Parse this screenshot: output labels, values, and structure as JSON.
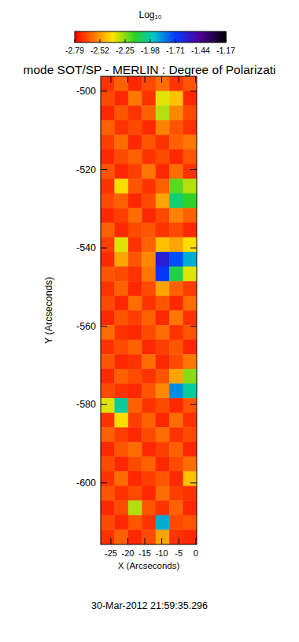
{
  "chart_data": {
    "type": "heatmap",
    "title": "mode SOT/SP - MERLIN : Degree of Polarizati",
    "x_label": "X (Arcseconds)",
    "y_label": "Y (Arcseconds)",
    "date": "30-Mar-2012 21:59:35.296",
    "xlim": [
      -28,
      0.3
    ],
    "ylim": [
      -615.7,
      -496.2
    ],
    "xticks": [
      -25,
      -20,
      -15,
      -10,
      -5,
      0
    ],
    "yticks": [
      -500,
      -520,
      -540,
      -560,
      -580,
      -600
    ],
    "colorbar": {
      "title": "Log₁₀",
      "range": [
        -2.79,
        -1.17
      ],
      "ticks": [
        -2.79,
        -2.52,
        -2.25,
        -1.98,
        -1.71,
        -1.44,
        -1.17
      ]
    },
    "cells": [
      [
        -2.7,
        -2.62,
        -2.72,
        -2.66,
        -2.6,
        -2.7,
        -2.64
      ],
      [
        -2.66,
        -2.72,
        -2.58,
        -2.7,
        -2.35,
        -2.45,
        -2.72
      ],
      [
        -2.72,
        -2.64,
        -2.7,
        -2.62,
        -2.3,
        -2.55,
        -2.66
      ],
      [
        -2.62,
        -2.7,
        -2.66,
        -2.72,
        -2.56,
        -2.64,
        -2.7
      ],
      [
        -2.68,
        -2.6,
        -2.72,
        -2.64,
        -2.7,
        -2.62,
        -2.58
      ],
      [
        -2.72,
        -2.66,
        -2.62,
        -2.7,
        -2.66,
        -2.72,
        -2.64
      ],
      [
        -2.64,
        -2.72,
        -2.68,
        -2.58,
        -2.72,
        -2.6,
        -2.7
      ],
      [
        -2.7,
        -2.4,
        -2.64,
        -2.7,
        -2.62,
        -2.2,
        -2.3
      ],
      [
        -2.66,
        -2.62,
        -2.72,
        -2.66,
        -2.5,
        -2.05,
        -2.15
      ],
      [
        -2.72,
        -2.68,
        -2.6,
        -2.72,
        -2.66,
        -2.56,
        -2.62
      ],
      [
        -2.62,
        -2.72,
        -2.66,
        -2.64,
        -2.7,
        -2.66,
        -2.72
      ],
      [
        -2.68,
        -2.35,
        -2.7,
        -2.62,
        -2.45,
        -2.5,
        -2.4
      ],
      [
        -2.72,
        -2.5,
        -2.64,
        -2.55,
        -1.6,
        -1.75,
        -1.9
      ],
      [
        -2.64,
        -2.66,
        -2.7,
        -2.58,
        -1.7,
        -2.1,
        -2.35
      ],
      [
        -2.7,
        -2.62,
        -2.72,
        -2.66,
        -2.5,
        -2.62,
        -2.68
      ],
      [
        -2.66,
        -2.72,
        -2.6,
        -2.7,
        -2.64,
        -2.72,
        -2.6
      ],
      [
        -2.72,
        -2.64,
        -2.68,
        -2.62,
        -2.72,
        -2.58,
        -2.7
      ],
      [
        -2.6,
        -2.7,
        -2.72,
        -2.66,
        -2.6,
        -2.7,
        -2.64
      ],
      [
        -2.7,
        -2.66,
        -2.62,
        -2.72,
        -2.68,
        -2.64,
        -2.72
      ],
      [
        -2.64,
        -2.72,
        -2.7,
        -2.6,
        -2.72,
        -2.66,
        -2.58
      ],
      [
        -2.72,
        -2.62,
        -2.66,
        -2.7,
        -2.64,
        -2.5,
        -2.25
      ],
      [
        -2.66,
        -2.7,
        -2.72,
        -2.64,
        -2.55,
        -1.85,
        -2.0
      ],
      [
        -2.35,
        -2.0,
        -2.62,
        -2.7,
        -2.66,
        -2.72,
        -2.64
      ],
      [
        -2.7,
        -2.4,
        -2.68,
        -2.62,
        -2.72,
        -2.6,
        -2.7
      ],
      [
        -2.62,
        -2.68,
        -2.72,
        -2.66,
        -2.6,
        -2.7,
        -2.66
      ],
      [
        -2.72,
        -2.64,
        -2.6,
        -2.72,
        -2.68,
        -2.62,
        -2.72
      ],
      [
        -2.66,
        -2.72,
        -2.66,
        -2.62,
        -2.72,
        -2.66,
        -2.6
      ],
      [
        -2.7,
        -2.6,
        -2.72,
        -2.68,
        -2.64,
        -2.72,
        -2.45
      ],
      [
        -2.64,
        -2.7,
        -2.66,
        -2.72,
        -2.6,
        -2.68,
        -2.7
      ],
      [
        -2.72,
        -2.66,
        -2.3,
        -2.64,
        -2.7,
        -2.62,
        -2.72
      ],
      [
        -2.66,
        -2.72,
        -2.64,
        -2.7,
        -1.9,
        -2.66,
        -2.64
      ],
      [
        -2.7,
        -2.62,
        -2.72,
        -2.66,
        -2.5,
        -2.7,
        -2.72
      ]
    ]
  }
}
